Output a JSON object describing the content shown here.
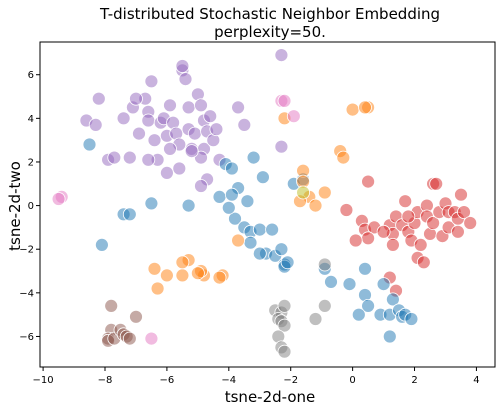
{
  "chart_data": {
    "type": "scatter",
    "title": "T-distributed Stochastic Neighbor Embedding",
    "subtitle": "perplexity=50.",
    "xlabel": "tsne-2d-one",
    "ylabel": "tsne-2d-two",
    "xlim": [
      -10.1,
      4.6
    ],
    "ylim": [
      -7.4,
      7.5
    ],
    "xticks": [
      -10,
      -8,
      -6,
      -4,
      -2,
      0,
      2,
      4
    ],
    "yticks": [
      -6,
      -4,
      -2,
      0,
      2,
      4,
      6
    ],
    "grid": false,
    "legend": "none",
    "point_alpha": 0.5,
    "series": [
      {
        "color": "#9467bd",
        "points": [
          [
            -8.6,
            3.9
          ],
          [
            -8.2,
            4.9
          ],
          [
            -8.3,
            3.7
          ],
          [
            -7.9,
            2.1
          ],
          [
            -7.7,
            2.2
          ],
          [
            -7.4,
            4.0
          ],
          [
            -7.2,
            2.2
          ],
          [
            -7.1,
            4.5
          ],
          [
            -6.9,
            3.3
          ],
          [
            -6.7,
            4.9
          ],
          [
            -6.6,
            4.3
          ],
          [
            -6.6,
            3.9
          ],
          [
            -6.4,
            3.0
          ],
          [
            -6.3,
            2.1
          ],
          [
            -6.2,
            3.8
          ],
          [
            -6.1,
            4.0
          ],
          [
            -6.0,
            3.2
          ],
          [
            -5.9,
            4.6
          ],
          [
            -5.8,
            3.8
          ],
          [
            -5.7,
            3.3
          ],
          [
            -5.6,
            2.8
          ],
          [
            -5.5,
            6.2
          ],
          [
            -5.5,
            6.4
          ],
          [
            -5.4,
            5.8
          ],
          [
            -5.3,
            4.5
          ],
          [
            -5.3,
            3.5
          ],
          [
            -5.2,
            2.6
          ],
          [
            -5.1,
            3.3
          ],
          [
            -5.0,
            5.1
          ],
          [
            -4.9,
            4.6
          ],
          [
            -4.8,
            3.9
          ],
          [
            -4.8,
            2.6
          ],
          [
            -4.7,
            3.4
          ],
          [
            -4.6,
            4.1
          ],
          [
            -4.5,
            3.0
          ],
          [
            -4.4,
            3.5
          ],
          [
            -4.3,
            2.1
          ],
          [
            -6.5,
            5.7
          ],
          [
            -6.6,
            2.1
          ],
          [
            -7.0,
            4.9
          ],
          [
            -5.9,
            2.6
          ],
          [
            -5.6,
            1.7
          ],
          [
            -4.7,
            1.2
          ],
          [
            -4.9,
            0.9
          ],
          [
            -4.9,
            2.2
          ],
          [
            -3.7,
            4.5
          ],
          [
            -3.5,
            3.7
          ],
          [
            -2.3,
            6.9
          ],
          [
            -2.3,
            2.7
          ],
          [
            -6.0,
            1.5
          ],
          [
            -5.2,
            2.5
          ]
        ]
      },
      {
        "color": "#d62728",
        "points": [
          [
            0.5,
            1.1
          ],
          [
            -0.2,
            -0.2
          ],
          [
            0.3,
            -0.7
          ],
          [
            0.4,
            -1.1
          ],
          [
            0.7,
            -1.0
          ],
          [
            0.5,
            -1.5
          ],
          [
            0.1,
            -1.6
          ],
          [
            1.2,
            -0.9
          ],
          [
            1.3,
            -1.3
          ],
          [
            1.3,
            -1.8
          ],
          [
            1.4,
            -0.5
          ],
          [
            1.6,
            -0.9
          ],
          [
            1.7,
            0.2
          ],
          [
            1.8,
            -1.2
          ],
          [
            1.9,
            -1.6
          ],
          [
            2.0,
            -0.8
          ],
          [
            2.1,
            -0.3
          ],
          [
            2.1,
            -2.4
          ],
          [
            2.2,
            -1.8
          ],
          [
            2.3,
            -2.6
          ],
          [
            2.4,
            0.0
          ],
          [
            2.4,
            -0.5
          ],
          [
            2.5,
            -1.3
          ],
          [
            2.6,
            -0.8
          ],
          [
            2.6,
            1.0
          ],
          [
            2.7,
            1.0
          ],
          [
            2.8,
            -0.3
          ],
          [
            2.9,
            -1.4
          ],
          [
            3.0,
            0.1
          ],
          [
            3.1,
            -0.3
          ],
          [
            3.1,
            -1.0
          ],
          [
            3.3,
            -0.3
          ],
          [
            3.4,
            -0.6
          ],
          [
            3.4,
            -1.2
          ],
          [
            3.5,
            0.5
          ],
          [
            3.6,
            -0.3
          ],
          [
            3.8,
            -0.8
          ],
          [
            1.2,
            -3.3
          ],
          [
            1.4,
            -3.9
          ],
          [
            1.8,
            -0.5
          ],
          [
            1.0,
            -1.2
          ]
        ]
      },
      {
        "color": "#1f77b4",
        "points": [
          [
            -8.5,
            2.8
          ],
          [
            -8.1,
            -1.8
          ],
          [
            -7.4,
            -0.4
          ],
          [
            -7.2,
            -0.4
          ],
          [
            -6.5,
            0.1
          ],
          [
            -5.3,
            0.0
          ],
          [
            -4.3,
            0.4
          ],
          [
            -4.1,
            1.9
          ],
          [
            -3.9,
            1.7
          ],
          [
            -3.7,
            0.8
          ],
          [
            -3.8,
            -0.6
          ],
          [
            -3.5,
            -1.0
          ],
          [
            -3.4,
            0.2
          ],
          [
            -3.3,
            -1.2
          ],
          [
            -3.2,
            2.2
          ],
          [
            -3.0,
            -1.1
          ],
          [
            -2.8,
            -2.2
          ],
          [
            -2.6,
            -1.1
          ],
          [
            -2.5,
            -2.3
          ],
          [
            -2.3,
            -2.0
          ],
          [
            -2.2,
            -2.7
          ],
          [
            -2.2,
            -2.8
          ],
          [
            -2.1,
            -2.6
          ],
          [
            -3.9,
            0.5
          ],
          [
            -2.9,
            1.3
          ],
          [
            -4.0,
            -0.1
          ],
          [
            -3.0,
            -2.2
          ],
          [
            -3.3,
            -1.7
          ],
          [
            -1.9,
            1.0
          ],
          [
            -1.6,
            1.2
          ],
          [
            -0.9,
            -2.9
          ],
          [
            -0.7,
            -3.5
          ],
          [
            -0.1,
            -3.6
          ],
          [
            0.4,
            -2.9
          ],
          [
            0.4,
            -4.1
          ],
          [
            0.5,
            -4.6
          ],
          [
            0.9,
            -5.0
          ],
          [
            1.0,
            -3.6
          ],
          [
            1.2,
            -5.0
          ],
          [
            1.3,
            -4.3
          ],
          [
            1.2,
            -6.0
          ],
          [
            1.5,
            -4.8
          ],
          [
            1.6,
            -5.1
          ],
          [
            1.7,
            -5.0
          ],
          [
            1.9,
            -5.2
          ],
          [
            0.2,
            -5.0
          ]
        ]
      },
      {
        "color": "#ff7f0e",
        "points": [
          [
            0.0,
            4.4
          ],
          [
            0.5,
            4.5
          ],
          [
            0.4,
            4.5
          ],
          [
            -0.4,
            2.5
          ],
          [
            -0.3,
            2.2
          ],
          [
            -2.2,
            4.0
          ],
          [
            -1.6,
            1.6
          ],
          [
            -1.6,
            1.1
          ],
          [
            -1.4,
            0.4
          ],
          [
            -1.7,
            0.2
          ],
          [
            -1.2,
            0.0
          ],
          [
            -0.9,
            0.6
          ],
          [
            -3.7,
            -1.6
          ],
          [
            -4.2,
            -3.2
          ],
          [
            -4.3,
            -3.3
          ],
          [
            -4.8,
            -3.2
          ],
          [
            -4.9,
            -3.0
          ],
          [
            -5.0,
            -3.1
          ],
          [
            -5.3,
            -2.5
          ],
          [
            -5.5,
            -3.2
          ],
          [
            -5.5,
            -2.6
          ],
          [
            -6.0,
            -3.2
          ],
          [
            -6.4,
            -2.9
          ],
          [
            -6.3,
            -3.8
          ]
        ]
      },
      {
        "color": "#7f7f7f",
        "points": [
          [
            -2.5,
            -4.8
          ],
          [
            -2.3,
            -4.9
          ],
          [
            -2.2,
            -4.6
          ],
          [
            -2.4,
            -5.2
          ],
          [
            -2.3,
            -5.3
          ],
          [
            -2.2,
            -5.5
          ],
          [
            -2.4,
            -6.0
          ],
          [
            -2.3,
            -6.5
          ],
          [
            -2.2,
            -6.7
          ],
          [
            -1.2,
            -5.2
          ],
          [
            -0.9,
            -4.6
          ],
          [
            -0.9,
            -2.7
          ]
        ]
      },
      {
        "color": "#8c564b",
        "points": [
          [
            -7.8,
            -4.6
          ],
          [
            -7.8,
            -5.7
          ],
          [
            -7.9,
            -6.1
          ],
          [
            -7.9,
            -6.2
          ],
          [
            -7.7,
            -6.1
          ],
          [
            -7.5,
            -5.7
          ],
          [
            -7.4,
            -5.9
          ],
          [
            -7.3,
            -6.0
          ],
          [
            -7.2,
            -6.1
          ],
          [
            -7.0,
            -5.1
          ]
        ]
      },
      {
        "color": "#e377c2",
        "points": [
          [
            -9.4,
            0.4
          ],
          [
            -9.5,
            0.3
          ],
          [
            -2.3,
            4.8
          ],
          [
            -2.2,
            4.8
          ],
          [
            -1.9,
            4.1
          ],
          [
            -6.5,
            -6.1
          ]
        ]
      },
      {
        "color": "#bcbd22",
        "points": [
          [
            -1.6,
            0.6
          ]
        ]
      }
    ]
  }
}
